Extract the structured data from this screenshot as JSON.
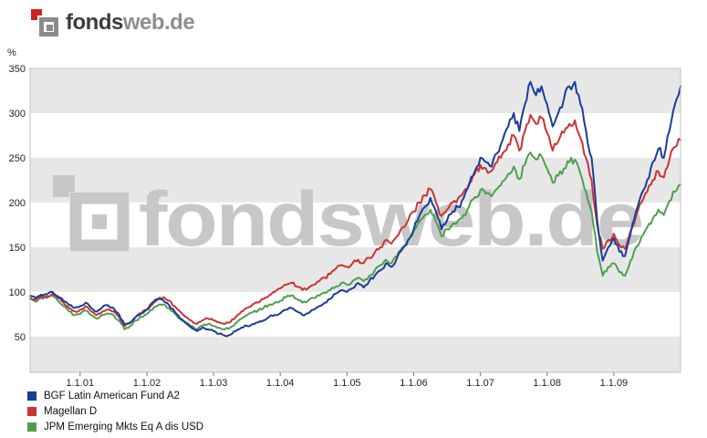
{
  "header": {
    "brand_bold": "fonds",
    "brand_rest": "web.de"
  },
  "watermark": {
    "text": "fondsweb.de"
  },
  "chart_data": {
    "type": "line",
    "title": "",
    "xlabel": "",
    "ylabel": "%",
    "ylim": [
      10,
      350
    ],
    "x_range": [
      2000.25,
      2010.0
    ],
    "yticks": [
      350,
      300,
      250,
      200,
      150,
      100,
      50
    ],
    "xticks": [
      {
        "label": "1.1.01",
        "x": 2001
      },
      {
        "label": "1.1.02",
        "x": 2002
      },
      {
        "label": "1.1.03",
        "x": 2003
      },
      {
        "label": "1.1.04",
        "x": 2004
      },
      {
        "label": "1.1.05",
        "x": 2005
      },
      {
        "label": "1.1.06",
        "x": 2006
      },
      {
        "label": "1.1.07",
        "x": 2007
      },
      {
        "label": "1.1.08",
        "x": 2008
      },
      {
        "label": "1.1.09",
        "x": 2009
      }
    ],
    "grid": "horizontal-stripes",
    "legend_position": "bottom-left",
    "stripe_colors": {
      "gray": "#e7e7e7",
      "white": "#ffffff"
    },
    "series": [
      {
        "name": "BGF Latin American Fund A2",
        "color": "#1b3c9b",
        "values": [
          96,
          93,
          97,
          97,
          100,
          95,
          90,
          85,
          82,
          84,
          88,
          82,
          78,
          83,
          85,
          82,
          75,
          63,
          65,
          72,
          76,
          80,
          88,
          92,
          90,
          85,
          78,
          70,
          65,
          60,
          56,
          60,
          58,
          56,
          53,
          51,
          52,
          56,
          60,
          62,
          64,
          66,
          68,
          72,
          74,
          76,
          80,
          82,
          78,
          74,
          76,
          80,
          84,
          88,
          92,
          98,
          102,
          100,
          104,
          110,
          105,
          112,
          118,
          124,
          132,
          128,
          138,
          148,
          158,
          170,
          185,
          195,
          205,
          190,
          170,
          180,
          190,
          195,
          205,
          220,
          235,
          250,
          245,
          240,
          255,
          270,
          285,
          300,
          280,
          310,
          335,
          320,
          330,
          310,
          285,
          300,
          315,
          330,
          335,
          310,
          280,
          250,
          180,
          135,
          150,
          160,
          145,
          140,
          165,
          190,
          210,
          225,
          245,
          260,
          250,
          280,
          310,
          330
        ]
      },
      {
        "name": "Magellan D",
        "color": "#cc3333",
        "values": [
          94,
          91,
          95,
          95,
          98,
          93,
          88,
          82,
          78,
          80,
          84,
          78,
          74,
          78,
          80,
          78,
          72,
          62,
          66,
          72,
          76,
          80,
          86,
          92,
          94,
          90,
          84,
          78,
          72,
          68,
          64,
          68,
          70,
          68,
          66,
          64,
          66,
          72,
          78,
          82,
          86,
          88,
          92,
          96,
          100,
          104,
          108,
          110,
          106,
          102,
          104,
          108,
          112,
          116,
          120,
          126,
          130,
          128,
          132,
          136,
          132,
          138,
          144,
          150,
          158,
          154,
          162,
          172,
          180,
          190,
          200,
          208,
          215,
          200,
          185,
          192,
          200,
          205,
          212,
          222,
          232,
          242,
          238,
          235,
          245,
          255,
          265,
          275,
          258,
          280,
          298,
          288,
          295,
          278,
          258,
          268,
          278,
          288,
          292,
          272,
          250,
          225,
          175,
          148,
          158,
          165,
          152,
          148,
          168,
          185,
          200,
          212,
          225,
          235,
          228,
          248,
          262,
          270
        ]
      },
      {
        "name": "JPM Emerging Mkts Eq A dis USD",
        "color": "#4f9e4f",
        "values": [
          92,
          89,
          93,
          93,
          96,
          90,
          84,
          78,
          74,
          75,
          79,
          74,
          70,
          74,
          76,
          74,
          68,
          58,
          62,
          68,
          72,
          75,
          80,
          85,
          86,
          82,
          76,
          70,
          66,
          62,
          58,
          62,
          64,
          62,
          60,
          58,
          60,
          65,
          70,
          74,
          77,
          79,
          82,
          86,
          88,
          90,
          94,
          96,
          92,
          88,
          90,
          93,
          96,
          99,
          102,
          106,
          110,
          108,
          112,
          116,
          112,
          118,
          124,
          130,
          136,
          132,
          140,
          150,
          158,
          168,
          178,
          186,
          192,
          178,
          162,
          170,
          176,
          180,
          186,
          196,
          206,
          214,
          210,
          207,
          215,
          224,
          232,
          240,
          226,
          242,
          256,
          248,
          252,
          238,
          222,
          230,
          238,
          245,
          248,
          232,
          212,
          190,
          145,
          118,
          128,
          132,
          122,
          118,
          135,
          150,
          162,
          172,
          182,
          192,
          186,
          202,
          212,
          220
        ]
      }
    ]
  }
}
